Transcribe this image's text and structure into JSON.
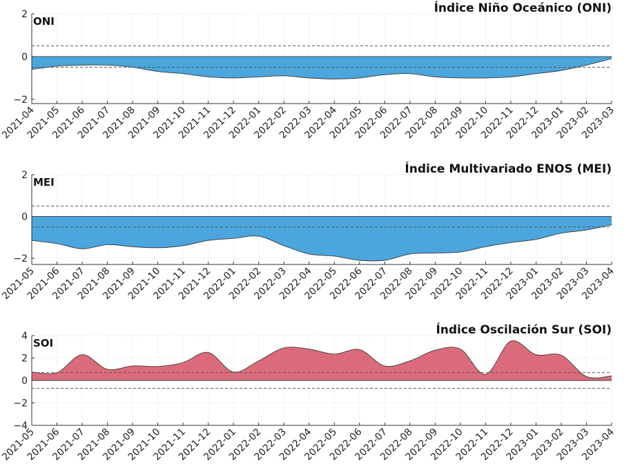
{
  "chart_data": [
    {
      "type": "area",
      "title": "Índice Niño Oceánico (ONI)",
      "label": "ONI",
      "categories": [
        "2021-04",
        "2021-05",
        "2021-06",
        "2021-07",
        "2021-08",
        "2021-09",
        "2021-10",
        "2021-11",
        "2021-12",
        "2022-01",
        "2022-02",
        "2022-03",
        "2022-04",
        "2022-05",
        "2022-06",
        "2022-07",
        "2022-08",
        "2022-09",
        "2022-10",
        "2022-11",
        "2022-12",
        "2023-01",
        "2023-02",
        "2023-03"
      ],
      "values": [
        -0.6,
        -0.45,
        -0.4,
        -0.4,
        -0.5,
        -0.7,
        -0.8,
        -0.95,
        -1.0,
        -0.95,
        -0.9,
        -1.0,
        -1.05,
        -1.0,
        -0.85,
        -0.8,
        -0.95,
        -1.0,
        -1.0,
        -0.95,
        -0.8,
        -0.65,
        -0.4,
        -0.1
      ],
      "ylim": [
        -2.2,
        2.0
      ],
      "yticks": [
        -2,
        0,
        2
      ],
      "thresholds": [
        0.5,
        -0.5
      ],
      "fill_color": "#4aa6dc",
      "grid": true
    },
    {
      "type": "area",
      "title": "Índice Multivariado ENOS (MEI)",
      "label": "MEI",
      "categories": [
        "2021-05",
        "2021-06",
        "2021-07",
        "2021-08",
        "2021-09",
        "2021-10",
        "2021-11",
        "2021-12",
        "2022-01",
        "2022-02",
        "2022-03",
        "2022-04",
        "2022-05",
        "2022-06",
        "2022-07",
        "2022-08",
        "2022-09",
        "2022-10",
        "2022-11",
        "2022-12",
        "2023-01",
        "2023-02",
        "2023-03",
        "2023-04"
      ],
      "values": [
        -1.15,
        -1.3,
        -1.55,
        -1.35,
        -1.45,
        -1.5,
        -1.4,
        -1.15,
        -1.05,
        -0.95,
        -1.4,
        -1.8,
        -1.9,
        -2.1,
        -2.1,
        -1.8,
        -1.75,
        -1.7,
        -1.45,
        -1.25,
        -1.1,
        -0.8,
        -0.65,
        -0.4
      ],
      "ylim": [
        -2.3,
        2.0
      ],
      "yticks": [
        -2,
        0,
        2
      ],
      "thresholds": [
        0.5,
        -0.5
      ],
      "fill_color": "#4aa6dc",
      "grid": true
    },
    {
      "type": "area",
      "title": "Índice Oscilación Sur (SOI)",
      "label": "SOI",
      "categories": [
        "2021-05",
        "2021-06",
        "2021-07",
        "2021-08",
        "2021-09",
        "2021-10",
        "2021-11",
        "2021-12",
        "2022-01",
        "2022-02",
        "2022-03",
        "2022-04",
        "2022-05",
        "2022-06",
        "2022-07",
        "2022-08",
        "2022-09",
        "2022-10",
        "2022-11",
        "2022-12",
        "2023-01",
        "2023-02",
        "2023-03",
        "2023-04"
      ],
      "values": [
        0.75,
        0.7,
        2.3,
        1.0,
        1.3,
        1.25,
        1.6,
        2.5,
        0.75,
        1.75,
        2.9,
        2.8,
        2.35,
        2.75,
        1.3,
        1.75,
        2.7,
        2.8,
        0.55,
        3.5,
        2.3,
        2.25,
        0.35,
        0.4
      ],
      "ylim": [
        -4,
        4
      ],
      "yticks": [
        -4,
        -2,
        0,
        2,
        4
      ],
      "thresholds": [
        0.7,
        -0.7
      ],
      "fill_color": "#db6b7b",
      "grid": true
    }
  ]
}
